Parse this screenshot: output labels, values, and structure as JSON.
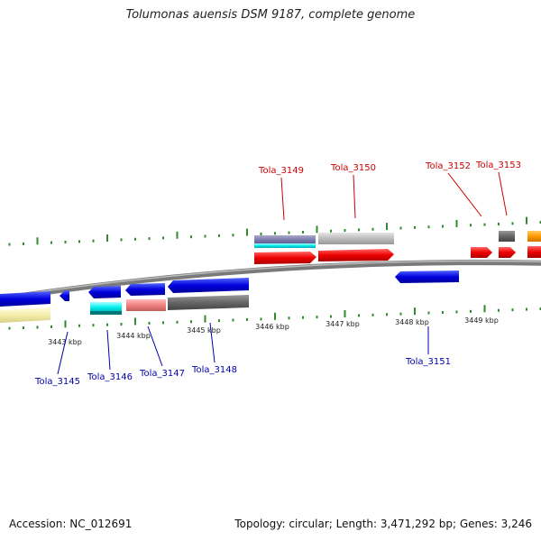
{
  "title": "Tolumonas auensis DSM 9187, complete genome",
  "footer": {
    "accession": "Accession: NC_012691",
    "topology": "Topology: circular; Length: 3,471,292 bp; Genes: 3,246"
  },
  "colors": {
    "forward_label": "#cc0000",
    "reverse_label": "#0000aa",
    "tick": "#2e8b2e",
    "backbone": "#888888"
  },
  "axis": {
    "kbp_labels": [
      "3443 kbp",
      "3444 kbp",
      "3445 kbp",
      "3446 kbp",
      "3447 kbp",
      "3448 kbp",
      "3449 kbp"
    ]
  },
  "gene_labels": {
    "forward": [
      "Tola_3149",
      "Tola_3150",
      "Tola_3152",
      "Tola_3153"
    ],
    "reverse": [
      "Tola_3145",
      "Tola_3146",
      "Tola_3147",
      "Tola_3148",
      "Tola_3151"
    ]
  }
}
